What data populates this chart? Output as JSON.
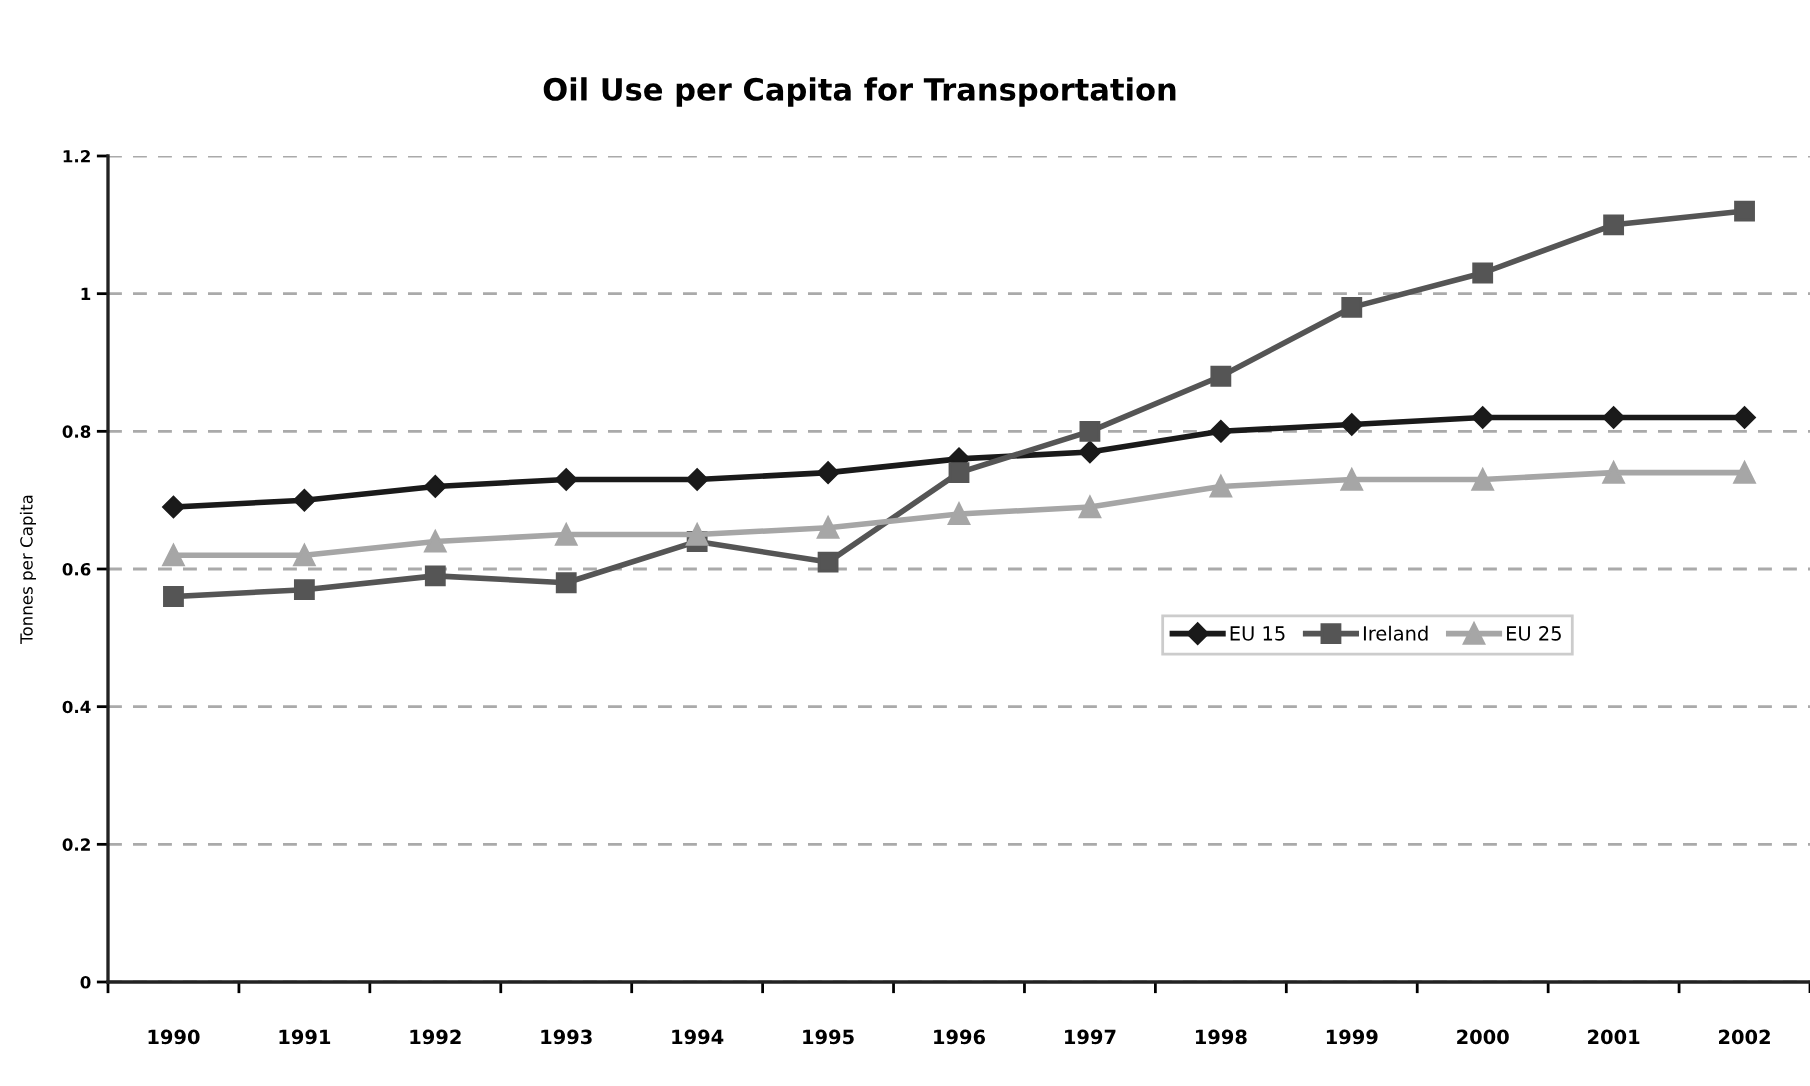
{
  "chart_data": {
    "type": "line",
    "title": "Oil Use per Capita for Transportation",
    "ylabel": "Tonnes per Capita",
    "categories": [
      "1990",
      "1991",
      "1992",
      "1993",
      "1994",
      "1995",
      "1996",
      "1997",
      "1998",
      "1999",
      "2000",
      "2001",
      "2002"
    ],
    "series": [
      {
        "name": "EU 15",
        "color": "#1a1a1a",
        "marker": "diamond",
        "values": [
          0.69,
          0.7,
          0.72,
          0.73,
          0.73,
          0.74,
          0.76,
          0.77,
          0.8,
          0.81,
          0.82,
          0.82,
          0.82
        ]
      },
      {
        "name": "Ireland",
        "color": "#555555",
        "marker": "square",
        "values": [
          0.56,
          0.57,
          0.59,
          0.58,
          0.64,
          0.61,
          0.74,
          0.8,
          0.88,
          0.98,
          1.03,
          1.1,
          1.12
        ]
      },
      {
        "name": "EU 25",
        "color": "#a6a6a6",
        "marker": "triangle",
        "values": [
          0.62,
          0.62,
          0.64,
          0.65,
          0.65,
          0.66,
          0.68,
          0.69,
          0.72,
          0.73,
          0.73,
          0.74,
          0.74
        ]
      }
    ],
    "ylim": [
      0,
      1.2
    ],
    "yticks": [
      0,
      0.2,
      0.4,
      0.6,
      0.8,
      1,
      1.2
    ],
    "grid": "y",
    "legend": "right",
    "line_style": "solid"
  }
}
